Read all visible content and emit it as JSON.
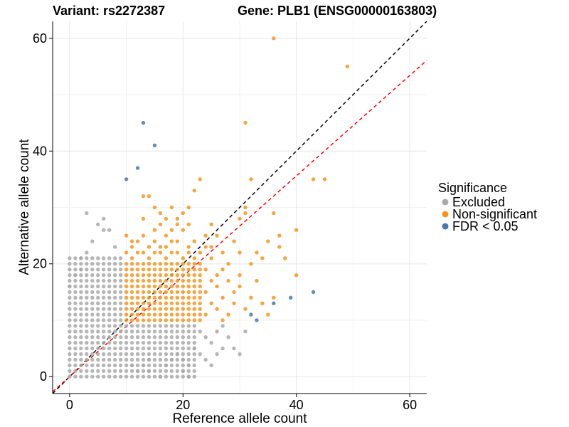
{
  "chart_data": {
    "type": "scatter",
    "title_left": "Variant: rs2272387",
    "title_right": "Gene: PLB1 (ENSG00000163803)",
    "xlabel": "Reference allele count",
    "ylabel": "Alternative allele count",
    "xlim": [
      -3,
      63
    ],
    "ylim": [
      -3,
      63
    ],
    "x_ticks": [
      0,
      20,
      40,
      60
    ],
    "y_ticks": [
      0,
      20,
      40,
      60
    ],
    "x_tick_labels": [
      "0",
      "20",
      "40",
      "60"
    ],
    "y_tick_labels": [
      "0",
      "20",
      "40",
      "60"
    ],
    "grid": true,
    "reference_lines": [
      {
        "name": "identity",
        "slope": 1.0,
        "intercept": 0,
        "color": "#000000",
        "style": "dashed"
      },
      {
        "name": "fit",
        "slope": 0.89,
        "intercept": 0,
        "color": "#ff0000",
        "style": "dashed"
      }
    ],
    "legend": {
      "title": "Significance",
      "position": "right",
      "entries": [
        {
          "label": "Excluded",
          "color": "#a9a9a9"
        },
        {
          "label": "Non-significant",
          "color": "#f7941d"
        },
        {
          "label": "FDR < 0.05",
          "color": "#4a78a8"
        }
      ]
    },
    "series": [
      {
        "name": "Excluded",
        "color": "#a9a9a9",
        "grid_regions": [
          {
            "x": [
              0,
              9
            ],
            "y": [
              0,
              21
            ]
          },
          {
            "x": [
              10,
              22
            ],
            "y": [
              0,
              9
            ]
          }
        ],
        "points": [
          [
            0,
            16
          ],
          [
            3,
            29
          ],
          [
            4,
            24
          ],
          [
            5,
            27
          ],
          [
            6,
            28
          ],
          [
            6,
            26
          ],
          [
            2,
            21
          ],
          [
            3,
            22
          ],
          [
            1,
            18
          ],
          [
            2,
            19
          ],
          [
            8,
            23
          ],
          [
            7,
            26
          ],
          [
            23,
            8
          ],
          [
            24,
            7
          ],
          [
            25,
            6
          ],
          [
            26,
            8
          ],
          [
            27,
            9
          ],
          [
            28,
            7
          ],
          [
            29,
            5
          ],
          [
            30,
            4
          ],
          [
            31,
            8
          ],
          [
            26,
            4
          ],
          [
            27,
            5
          ],
          [
            20,
            3
          ],
          [
            21,
            2
          ],
          [
            22,
            5
          ],
          [
            23,
            4
          ],
          [
            24,
            3
          ],
          [
            25,
            2
          ],
          [
            14,
            1
          ],
          [
            16,
            0
          ],
          [
            13,
            2
          ],
          [
            20,
            1
          ],
          [
            21,
            0
          ],
          [
            18,
            3
          ],
          [
            12,
            1
          ],
          [
            11,
            2
          ],
          [
            14,
            3
          ],
          [
            17,
            2
          ],
          [
            19,
            4
          ]
        ]
      },
      {
        "name": "Non-significant",
        "color": "#f7941d",
        "grid_regions": [
          {
            "x": [
              10,
              23
            ],
            "y": [
              10,
              20
            ]
          }
        ],
        "points": [
          [
            36,
            60
          ],
          [
            49,
            55
          ],
          [
            31,
            45
          ],
          [
            13,
            32
          ],
          [
            14,
            32
          ],
          [
            15,
            30
          ],
          [
            16,
            29
          ],
          [
            17,
            28
          ],
          [
            18,
            30
          ],
          [
            19,
            28
          ],
          [
            20,
            29
          ],
          [
            21,
            30
          ],
          [
            22,
            33
          ],
          [
            23,
            35
          ],
          [
            24,
            25
          ],
          [
            25,
            27
          ],
          [
            26,
            25
          ],
          [
            27,
            22
          ],
          [
            28,
            20
          ],
          [
            29,
            24
          ],
          [
            30,
            28
          ],
          [
            31,
            30
          ],
          [
            32,
            35
          ],
          [
            32,
            20
          ],
          [
            33,
            22
          ],
          [
            34,
            21
          ],
          [
            35,
            24
          ],
          [
            36,
            29
          ],
          [
            37,
            25
          ],
          [
            37,
            23
          ],
          [
            38,
            21
          ],
          [
            40,
            26
          ],
          [
            40,
            18
          ],
          [
            43,
            35
          ],
          [
            45,
            35
          ],
          [
            31,
            29
          ],
          [
            30,
            22
          ],
          [
            28,
            17
          ],
          [
            27,
            19
          ],
          [
            26,
            18
          ],
          [
            25,
            23
          ],
          [
            25,
            21
          ],
          [
            24,
            15
          ],
          [
            25,
            13
          ],
          [
            26,
            12
          ],
          [
            24,
            11
          ],
          [
            27,
            14
          ],
          [
            28,
            11
          ],
          [
            29,
            15
          ],
          [
            30,
            16
          ],
          [
            31,
            12
          ],
          [
            32,
            14
          ],
          [
            33,
            17
          ],
          [
            34,
            13
          ],
          [
            35,
            11
          ],
          [
            36,
            14
          ],
          [
            30,
            18
          ],
          [
            29,
            13
          ],
          [
            27,
            10
          ],
          [
            26,
            16
          ],
          [
            25,
            17
          ],
          [
            24,
            19
          ],
          [
            22,
            24
          ],
          [
            21,
            23
          ],
          [
            20,
            26
          ],
          [
            19,
            24
          ],
          [
            18,
            26
          ],
          [
            17,
            25
          ],
          [
            16,
            27
          ],
          [
            15,
            24
          ],
          [
            14,
            23
          ],
          [
            13,
            25
          ],
          [
            12,
            24
          ],
          [
            11,
            23
          ],
          [
            10,
            25
          ],
          [
            10,
            22
          ],
          [
            11,
            21
          ],
          [
            12,
            22
          ],
          [
            13,
            22
          ],
          [
            14,
            21
          ],
          [
            15,
            22
          ],
          [
            16,
            22
          ],
          [
            17,
            21
          ],
          [
            18,
            22
          ],
          [
            19,
            22
          ],
          [
            20,
            21
          ],
          [
            21,
            22
          ],
          [
            22,
            21
          ],
          [
            23,
            22
          ],
          [
            24,
            23
          ],
          [
            13,
            28
          ],
          [
            15,
            26
          ],
          [
            17,
            23
          ],
          [
            19,
            27
          ],
          [
            21,
            27
          ],
          [
            11,
            24
          ],
          [
            16,
            23
          ],
          [
            18,
            24
          ]
        ]
      },
      {
        "name": "FDR < 0.05",
        "color": "#4a78a8",
        "points": [
          [
            13,
            45
          ],
          [
            15,
            41
          ],
          [
            12,
            37
          ],
          [
            10,
            35
          ],
          [
            32,
            11
          ],
          [
            33,
            10
          ],
          [
            36,
            13
          ],
          [
            39,
            14
          ],
          [
            43,
            15
          ]
        ]
      }
    ]
  }
}
